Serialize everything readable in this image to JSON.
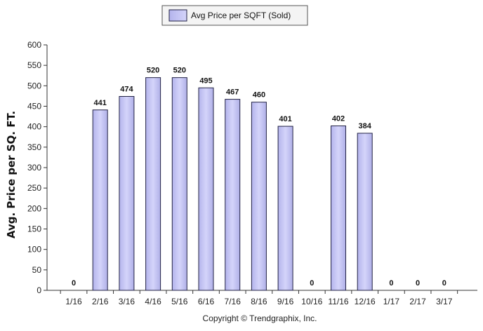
{
  "chart_data": {
    "type": "bar",
    "categories": [
      "1/16",
      "2/16",
      "3/16",
      "4/16",
      "5/16",
      "6/16",
      "7/16",
      "8/16",
      "9/16",
      "10/16",
      "11/16",
      "12/16",
      "1/17",
      "2/17",
      "3/17"
    ],
    "series": [
      {
        "name": "Avg Price per SQFT (Sold)",
        "values": [
          0,
          441,
          474,
          520,
          520,
          495,
          467,
          460,
          401,
          0,
          402,
          384,
          0,
          0,
          0
        ]
      }
    ],
    "ylabel": "Avg. Price per SQ. FT.",
    "xlabel": "",
    "ylim": [
      0,
      600
    ],
    "yticks": [
      0,
      50,
      100,
      150,
      200,
      250,
      300,
      350,
      400,
      450,
      500,
      550,
      600
    ],
    "grid": false,
    "legend_position": "top-center",
    "colors": {
      "bar_fill": "#c8c8f4",
      "bar_stroke": "#222244",
      "axis": "#333333"
    }
  },
  "footer": {
    "copyright": "Copyright © Trendgraphix, Inc."
  }
}
